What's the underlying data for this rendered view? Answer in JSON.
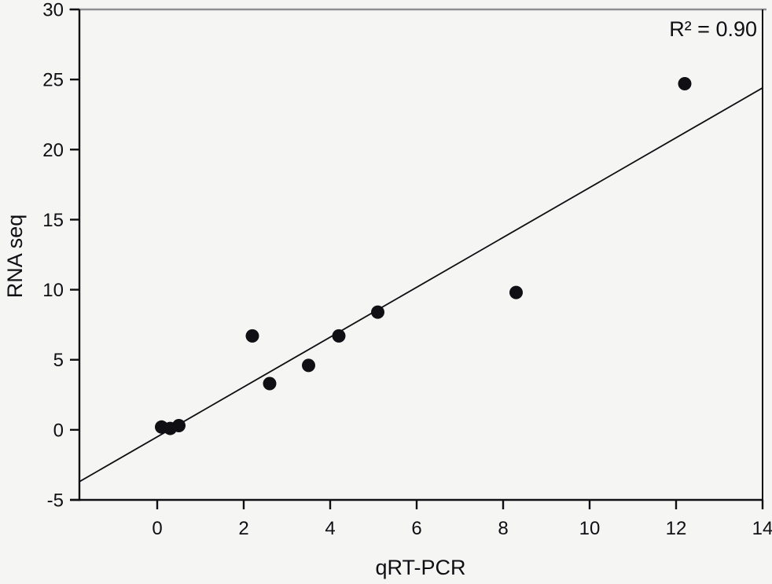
{
  "figure": {
    "background": "#f5f5f3"
  },
  "style": {
    "point_color": "#0f0f14",
    "line_color": "#0f0f14",
    "axis_color": "#0f0f14",
    "top_spine_color": "#8d8d92",
    "point_radius": 8.5
  },
  "chart_data": {
    "type": "scatter",
    "title": "",
    "xlabel": "qRT-PCR",
    "ylabel": "RNA seq",
    "xlim": [
      -1.8,
      14
    ],
    "ylim": [
      -5,
      30
    ],
    "x_ticks": [
      0,
      2,
      4,
      6,
      8,
      10,
      12,
      14
    ],
    "y_ticks": [
      -5,
      0,
      5,
      10,
      15,
      20,
      25,
      30
    ],
    "grid": false,
    "legend": "none",
    "annotation": "R² = 0.90",
    "r_squared": 0.9,
    "points": [
      {
        "x": 0.1,
        "y": 0.2
      },
      {
        "x": 0.3,
        "y": 0.1
      },
      {
        "x": 0.5,
        "y": 0.3
      },
      {
        "x": 2.2,
        "y": 6.7
      },
      {
        "x": 2.6,
        "y": 3.3
      },
      {
        "x": 3.5,
        "y": 4.6
      },
      {
        "x": 4.2,
        "y": 6.7
      },
      {
        "x": 5.1,
        "y": 8.4
      },
      {
        "x": 8.3,
        "y": 9.8
      },
      {
        "x": 12.2,
        "y": 24.7
      }
    ],
    "fit_line": {
      "x1": -1.8,
      "y1": -3.7,
      "x2": 14,
      "y2": 24.4
    }
  }
}
